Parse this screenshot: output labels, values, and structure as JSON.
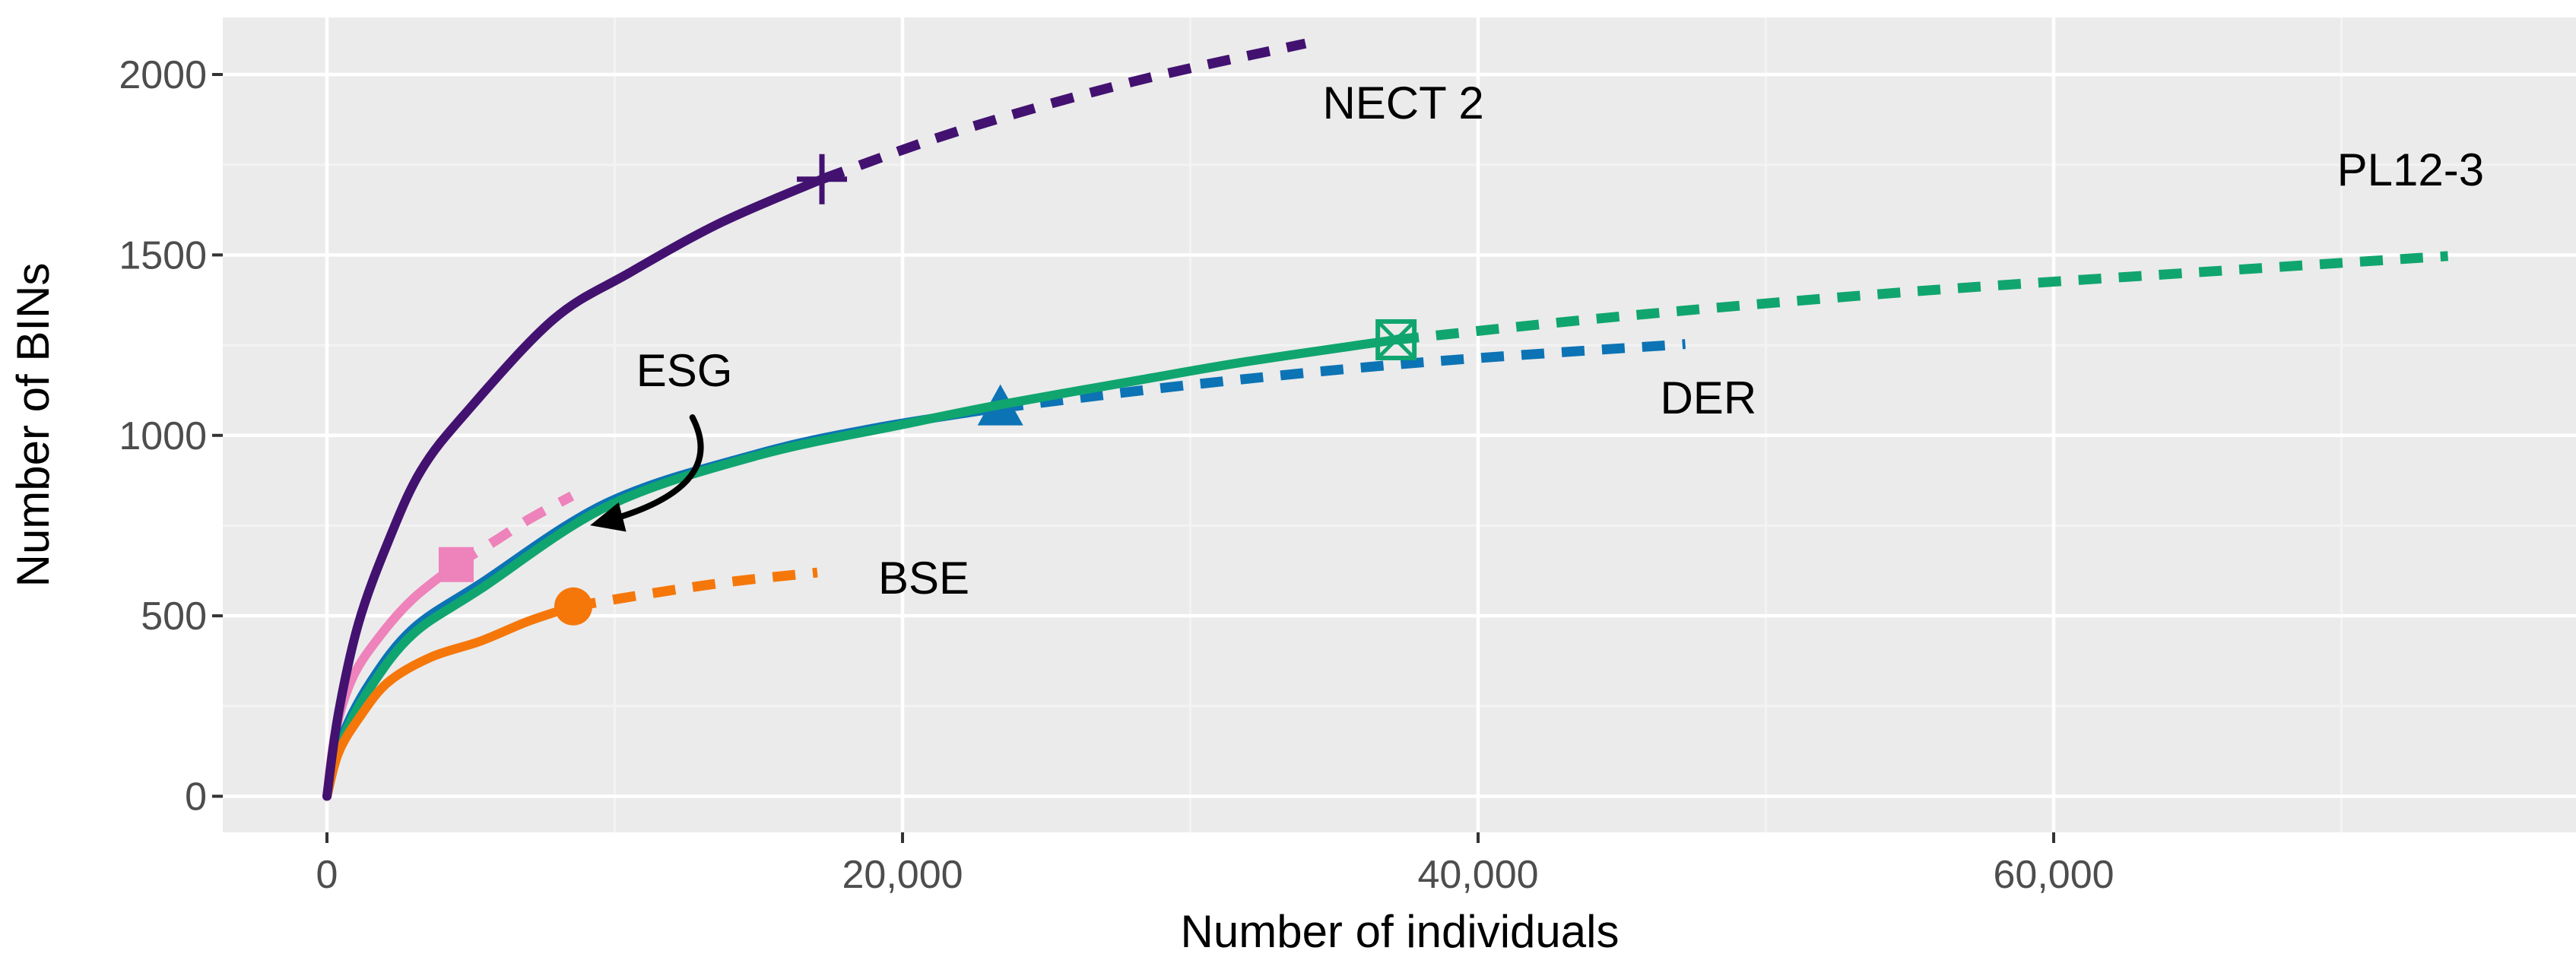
{
  "figure": {
    "background": "#FFFFFF",
    "panel_background": "#EBEBEB",
    "grid_major_color": "#FFFFFF",
    "grid_minor_color": "#F3F3F3",
    "tick_mark_color": "#333333",
    "tick_label_color": "#4D4D4D",
    "axis_title_color": "#000000",
    "annotation_color": "#000000"
  },
  "chart_data": {
    "type": "line",
    "title": "",
    "xlabel": "Number of individuals",
    "ylabel": "Number of BINs",
    "xlim": [
      -3620,
      78150
    ],
    "ylim": [
      -100,
      2158
    ],
    "grid": "major and minor white gridlines on gray panel",
    "legend_position": "none (curves labeled directly)",
    "x_ticks": {
      "values": [
        0,
        20000,
        40000,
        60000
      ],
      "labels": [
        "0",
        "20,000",
        "40,000",
        "60,000"
      ]
    },
    "y_ticks": {
      "values": [
        0,
        500,
        1000,
        1500,
        2000
      ],
      "labels": [
        "0",
        "500",
        "1000",
        "1500",
        "2000"
      ]
    },
    "x_minor": [
      10000,
      30000,
      50000,
      70000
    ],
    "y_minor": [
      250,
      750,
      1250,
      1750
    ],
    "line_style_meaning": "solid = rarefaction (interpolated), dashed = extrapolated",
    "series": [
      {
        "name": "ESG",
        "color": "#EE82BB",
        "marker": "filled-square",
        "solid": [
          [
            0,
            0
          ],
          [
            300,
            180
          ],
          [
            900,
            330
          ],
          [
            1850,
            445
          ],
          [
            3000,
            548
          ],
          [
            4490,
            642
          ]
        ],
        "dashed": [
          [
            4490,
            642
          ],
          [
            5790,
            705
          ],
          [
            7030,
            768
          ],
          [
            8510,
            832
          ]
        ],
        "marker_at": [
          4490,
          642
        ],
        "label": {
          "text": "ESG",
          "x": 12420,
          "y": 1181
        },
        "annotation_arrow": {
          "from": [
            12700,
            1050
          ],
          "control": [
            14000,
            850
          ],
          "to": [
            9400,
            756
          ]
        }
      },
      {
        "name": "DER",
        "color": "#0C73B5",
        "marker": "filled-triangle",
        "solid": [
          [
            0,
            0
          ],
          [
            500,
            160
          ],
          [
            1500,
            315
          ],
          [
            3000,
            465
          ],
          [
            5350,
            590
          ],
          [
            9780,
            815
          ],
          [
            15000,
            950
          ],
          [
            19000,
            1020
          ],
          [
            23400,
            1076
          ]
        ],
        "dashed": [
          [
            23400,
            1076
          ],
          [
            30000,
            1140
          ],
          [
            38000,
            1202
          ],
          [
            47200,
            1253
          ]
        ],
        "marker_at": [
          23400,
          1076
        ],
        "label": {
          "text": "DER",
          "x": 48000,
          "y": 1105
        }
      },
      {
        "name": "PL12-3",
        "color": "#10A56F",
        "marker": "crossed-square",
        "solid": [
          [
            0,
            0
          ],
          [
            500,
            150
          ],
          [
            1500,
            300
          ],
          [
            3000,
            450
          ],
          [
            5350,
            575
          ],
          [
            9780,
            805
          ],
          [
            15000,
            945
          ],
          [
            20000,
            1030
          ],
          [
            23400,
            1085
          ],
          [
            28000,
            1150
          ],
          [
            32000,
            1205
          ],
          [
            37150,
            1265
          ]
        ],
        "dashed": [
          [
            37150,
            1265
          ],
          [
            45000,
            1330
          ],
          [
            55000,
            1398
          ],
          [
            65000,
            1452
          ],
          [
            73700,
            1497
          ]
        ],
        "marker_at": [
          37150,
          1265
        ],
        "label": {
          "text": "PL12-3",
          "x": 72400,
          "y": 1737
        }
      },
      {
        "name": "BSE",
        "color": "#F5770A",
        "marker": "filled-circle",
        "solid": [
          [
            0,
            0
          ],
          [
            400,
            120
          ],
          [
            1100,
            215
          ],
          [
            2110,
            315
          ],
          [
            3600,
            385
          ],
          [
            5340,
            430
          ],
          [
            7000,
            485
          ],
          [
            8560,
            526
          ]
        ],
        "dashed": [
          [
            8560,
            526
          ],
          [
            11500,
            565
          ],
          [
            14200,
            596
          ],
          [
            17040,
            620
          ]
        ],
        "marker_at": [
          8560,
          526
        ],
        "label": {
          "text": "BSE",
          "x": 20740,
          "y": 606
        }
      },
      {
        "name": "NECT 2",
        "color": "#431270",
        "marker": "plus",
        "solid": [
          [
            0,
            0
          ],
          [
            400,
            230
          ],
          [
            1100,
            480
          ],
          [
            2100,
            700
          ],
          [
            3250,
            900
          ],
          [
            4800,
            1060
          ],
          [
            7850,
            1320
          ],
          [
            10500,
            1450
          ],
          [
            13700,
            1590
          ],
          [
            17200,
            1710
          ]
        ],
        "dashed": [
          [
            17200,
            1710
          ],
          [
            22000,
            1845
          ],
          [
            28000,
            1980
          ],
          [
            34000,
            2086
          ]
        ],
        "marker_at": [
          17200,
          1710
        ],
        "label": {
          "text": "NECT 2",
          "x": 37400,
          "y": 1922
        }
      }
    ]
  }
}
